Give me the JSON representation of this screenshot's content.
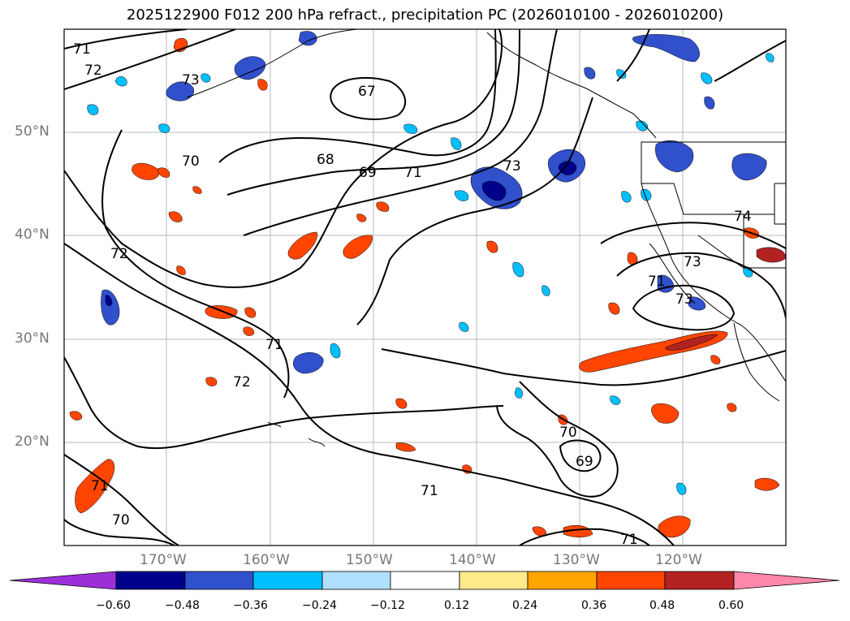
{
  "title": "2025122900 F012 200 hPa refract., precipitation PC (2026010100 - 2026010200)",
  "lat_labels": [
    "50°N",
    "40°N",
    "30°N",
    "20°N"
  ],
  "lon_labels": [
    "170°W",
    "160°W",
    "150°W",
    "140°W",
    "130°W",
    "120°W"
  ],
  "contour_labels": [
    "71",
    "72",
    "73",
    "67",
    "68",
    "69",
    "71",
    "73",
    "70",
    "72",
    "74",
    "73",
    "71",
    "73",
    "71",
    "72",
    "70",
    "69",
    "71",
    "71",
    "70",
    "71"
  ],
  "colorbar": {
    "ticks": [
      "−0.60",
      "−0.48",
      "−0.36",
      "−0.24",
      "−0.12",
      "0.12",
      "0.24",
      "0.36",
      "0.48",
      "0.60"
    ],
    "colors": [
      "#9b30d9",
      "#00008b",
      "#3050cc",
      "#00bfff",
      "#b0e0ff",
      "#ffffff",
      "#ffe98a",
      "#ffa500",
      "#ff4500",
      "#b22222",
      "#ff88aa"
    ]
  }
}
